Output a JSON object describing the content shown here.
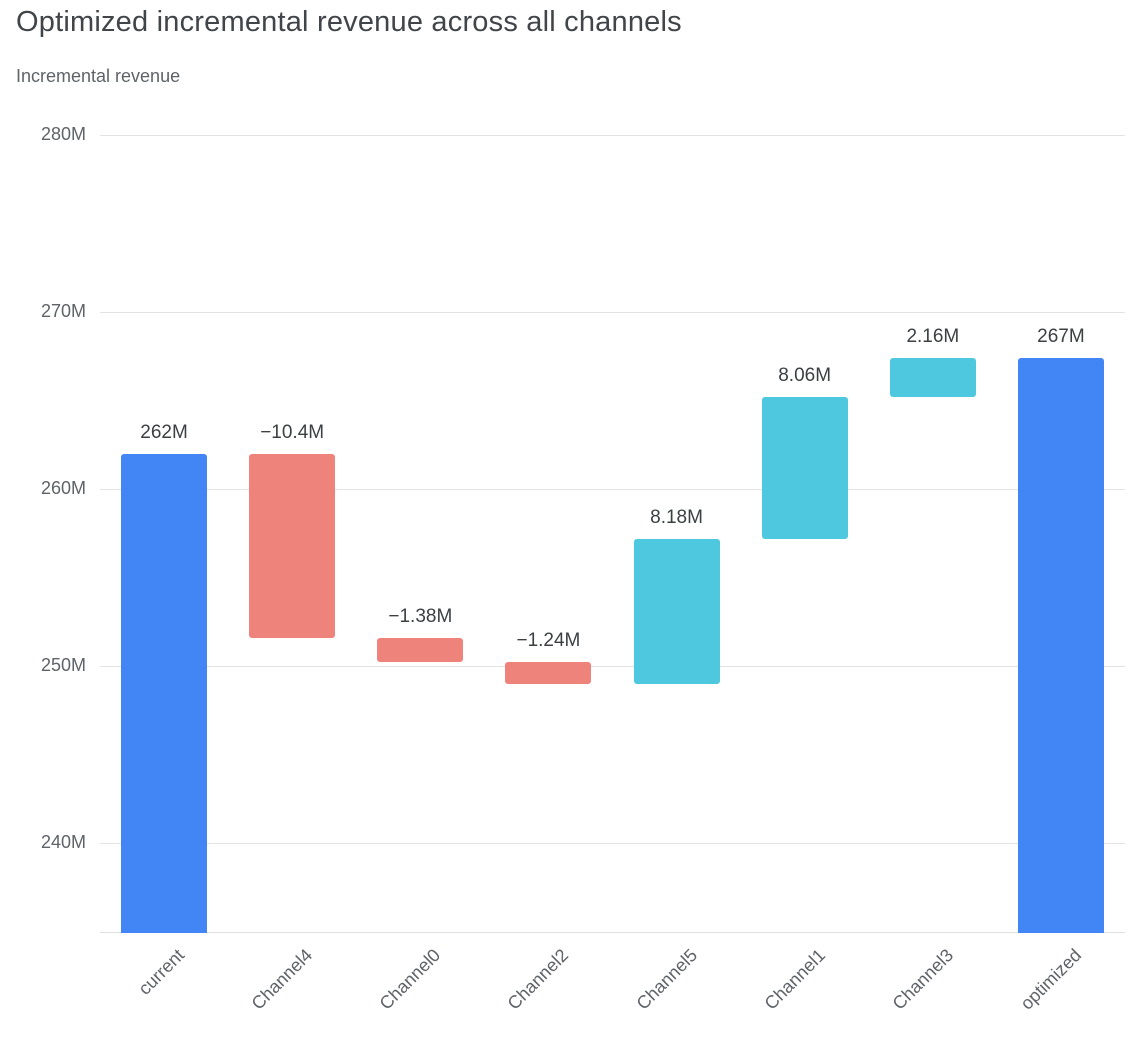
{
  "page": {
    "title": "Optimized incremental revenue across all channels",
    "subtitle": "Incremental revenue"
  },
  "chart_data": {
    "type": "bar",
    "subtype": "waterfall",
    "title": "Optimized incremental revenue across all channels",
    "ylabel": "Incremental revenue",
    "categories": [
      "current",
      "Channel4",
      "Channel0",
      "Channel2",
      "Channel5",
      "Channel1",
      "Channel3",
      "optimized"
    ],
    "bars": [
      {
        "label": "current",
        "kind": "total",
        "value": 262.0,
        "display": "262M"
      },
      {
        "label": "Channel4",
        "kind": "decrease",
        "value": -10.4,
        "display": "−10.4M"
      },
      {
        "label": "Channel0",
        "kind": "decrease",
        "value": -1.38,
        "display": "−1.38M"
      },
      {
        "label": "Channel2",
        "kind": "decrease",
        "value": -1.24,
        "display": "−1.24M"
      },
      {
        "label": "Channel5",
        "kind": "increase",
        "value": 8.18,
        "display": "8.18M"
      },
      {
        "label": "Channel1",
        "kind": "increase",
        "value": 8.06,
        "display": "8.06M"
      },
      {
        "label": "Channel3",
        "kind": "increase",
        "value": 2.16,
        "display": "2.16M"
      },
      {
        "label": "optimized",
        "kind": "total",
        "value": 267.38,
        "display": "267M"
      }
    ],
    "axis": {
      "y_min": 234.92,
      "y_max": 280.85,
      "grid": true,
      "y_ticks": [
        {
          "value": 280,
          "label": "280M"
        },
        {
          "value": 270,
          "label": "270M"
        },
        {
          "value": 260,
          "label": "260M"
        },
        {
          "value": 250,
          "label": "250M"
        },
        {
          "value": 240,
          "label": "240M"
        }
      ]
    },
    "legend": "none",
    "colors": {
      "total": "#4285f4",
      "decrease": "#ed837b",
      "increase": "#4ec8df",
      "grid": "#e3e3e3",
      "axis_text": "#5f6368",
      "data_label": "#3c4043"
    }
  }
}
